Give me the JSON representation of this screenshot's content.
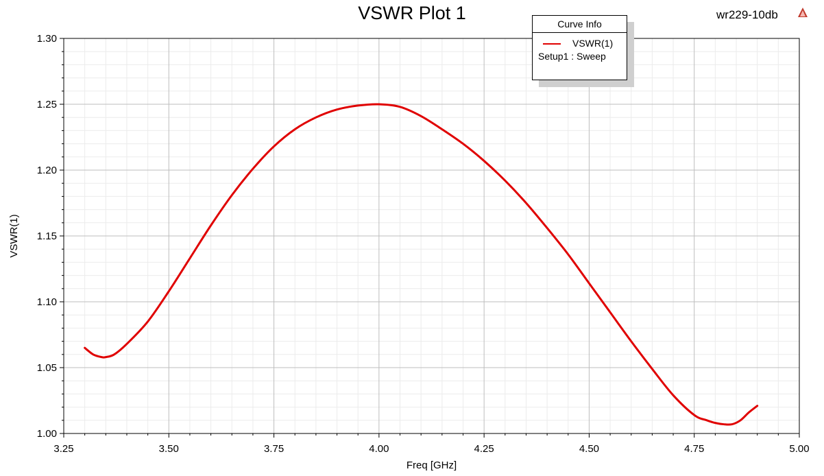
{
  "chart_data": {
    "type": "line",
    "title": "VSWR Plot 1",
    "project": "wr229-10db",
    "xlabel": "Freq [GHz]",
    "ylabel": "VSWR(1)",
    "xlim": [
      3.25,
      5.0
    ],
    "ylim": [
      1.0,
      1.3
    ],
    "x_ticks": [
      "3.25",
      "3.50",
      "3.75",
      "4.00",
      "4.25",
      "4.50",
      "4.75",
      "5.00"
    ],
    "y_ticks": [
      "1.00",
      "1.05",
      "1.10",
      "1.15",
      "1.20",
      "1.25",
      "1.30"
    ],
    "grid": true,
    "legend": {
      "title": "Curve Info",
      "placement": "top-right",
      "entries": [
        {
          "label": "VSWR(1)",
          "sublabel": "Setup1 : Sweep",
          "color": "#e00000"
        }
      ]
    },
    "series": [
      {
        "name": "VSWR(1)",
        "color": "#e00000",
        "x": [
          3.3,
          3.32,
          3.34,
          3.35,
          3.37,
          3.4,
          3.45,
          3.5,
          3.55,
          3.6,
          3.65,
          3.7,
          3.75,
          3.8,
          3.85,
          3.9,
          3.95,
          4.0,
          4.05,
          4.1,
          4.15,
          4.2,
          4.25,
          4.3,
          4.35,
          4.4,
          4.45,
          4.5,
          4.55,
          4.6,
          4.65,
          4.7,
          4.75,
          4.78,
          4.8,
          4.82,
          4.84,
          4.86,
          4.88,
          4.9
        ],
        "y": [
          1.065,
          1.06,
          1.058,
          1.058,
          1.06,
          1.068,
          1.085,
          1.108,
          1.133,
          1.158,
          1.181,
          1.201,
          1.218,
          1.231,
          1.24,
          1.246,
          1.249,
          1.25,
          1.248,
          1.241,
          1.231,
          1.22,
          1.207,
          1.192,
          1.175,
          1.156,
          1.136,
          1.114,
          1.092,
          1.07,
          1.049,
          1.029,
          1.014,
          1.01,
          1.008,
          1.007,
          1.007,
          1.01,
          1.016,
          1.021
        ]
      }
    ]
  }
}
